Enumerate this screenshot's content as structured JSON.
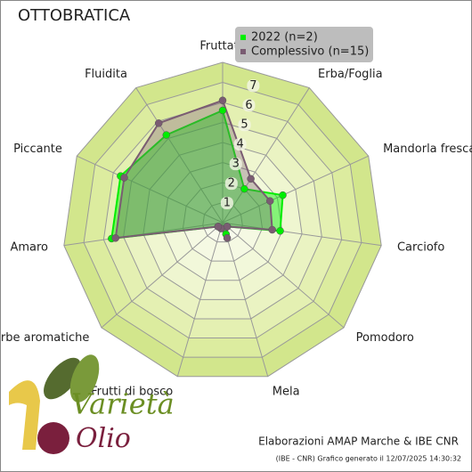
{
  "chart_data": {
    "type": "radar",
    "title": "OTTOBRATICA",
    "categories": [
      "Fruttato",
      "Erba/Foglia",
      "Mandorla fresca",
      "Carciofo",
      "Pomodoro",
      "Mela",
      "Frutti di bosco",
      "Erbe aromatiche",
      "Amaro",
      "Piccante",
      "Fluidita"
    ],
    "series": [
      {
        "name": "2022 (n=2)",
        "color": "#00ee00",
        "values": [
          5.6,
          2.0,
          3.3,
          2.9,
          0.3,
          0.6,
          0.3,
          0.3,
          5.6,
          5.6,
          5.2
        ]
      },
      {
        "name": "Complessivo (n=15)",
        "color": "#7a5c72",
        "values": [
          6.1,
          2.6,
          2.6,
          2.5,
          0.3,
          0.8,
          0.3,
          0.3,
          5.4,
          5.4,
          5.9
        ]
      }
    ],
    "ylim": [
      0,
      8
    ],
    "yticks": [
      1,
      2,
      3,
      4,
      5,
      6,
      7
    ],
    "grid": true,
    "legend": "top-right",
    "credit": "Elaborazioni AMAP Marche & IBE CNR",
    "footnote": "(IBE - CNR) Grafico generato il 12/07/2025 14:30:32",
    "logo": {
      "top": "Varietà",
      "bottom": "Olio"
    }
  }
}
